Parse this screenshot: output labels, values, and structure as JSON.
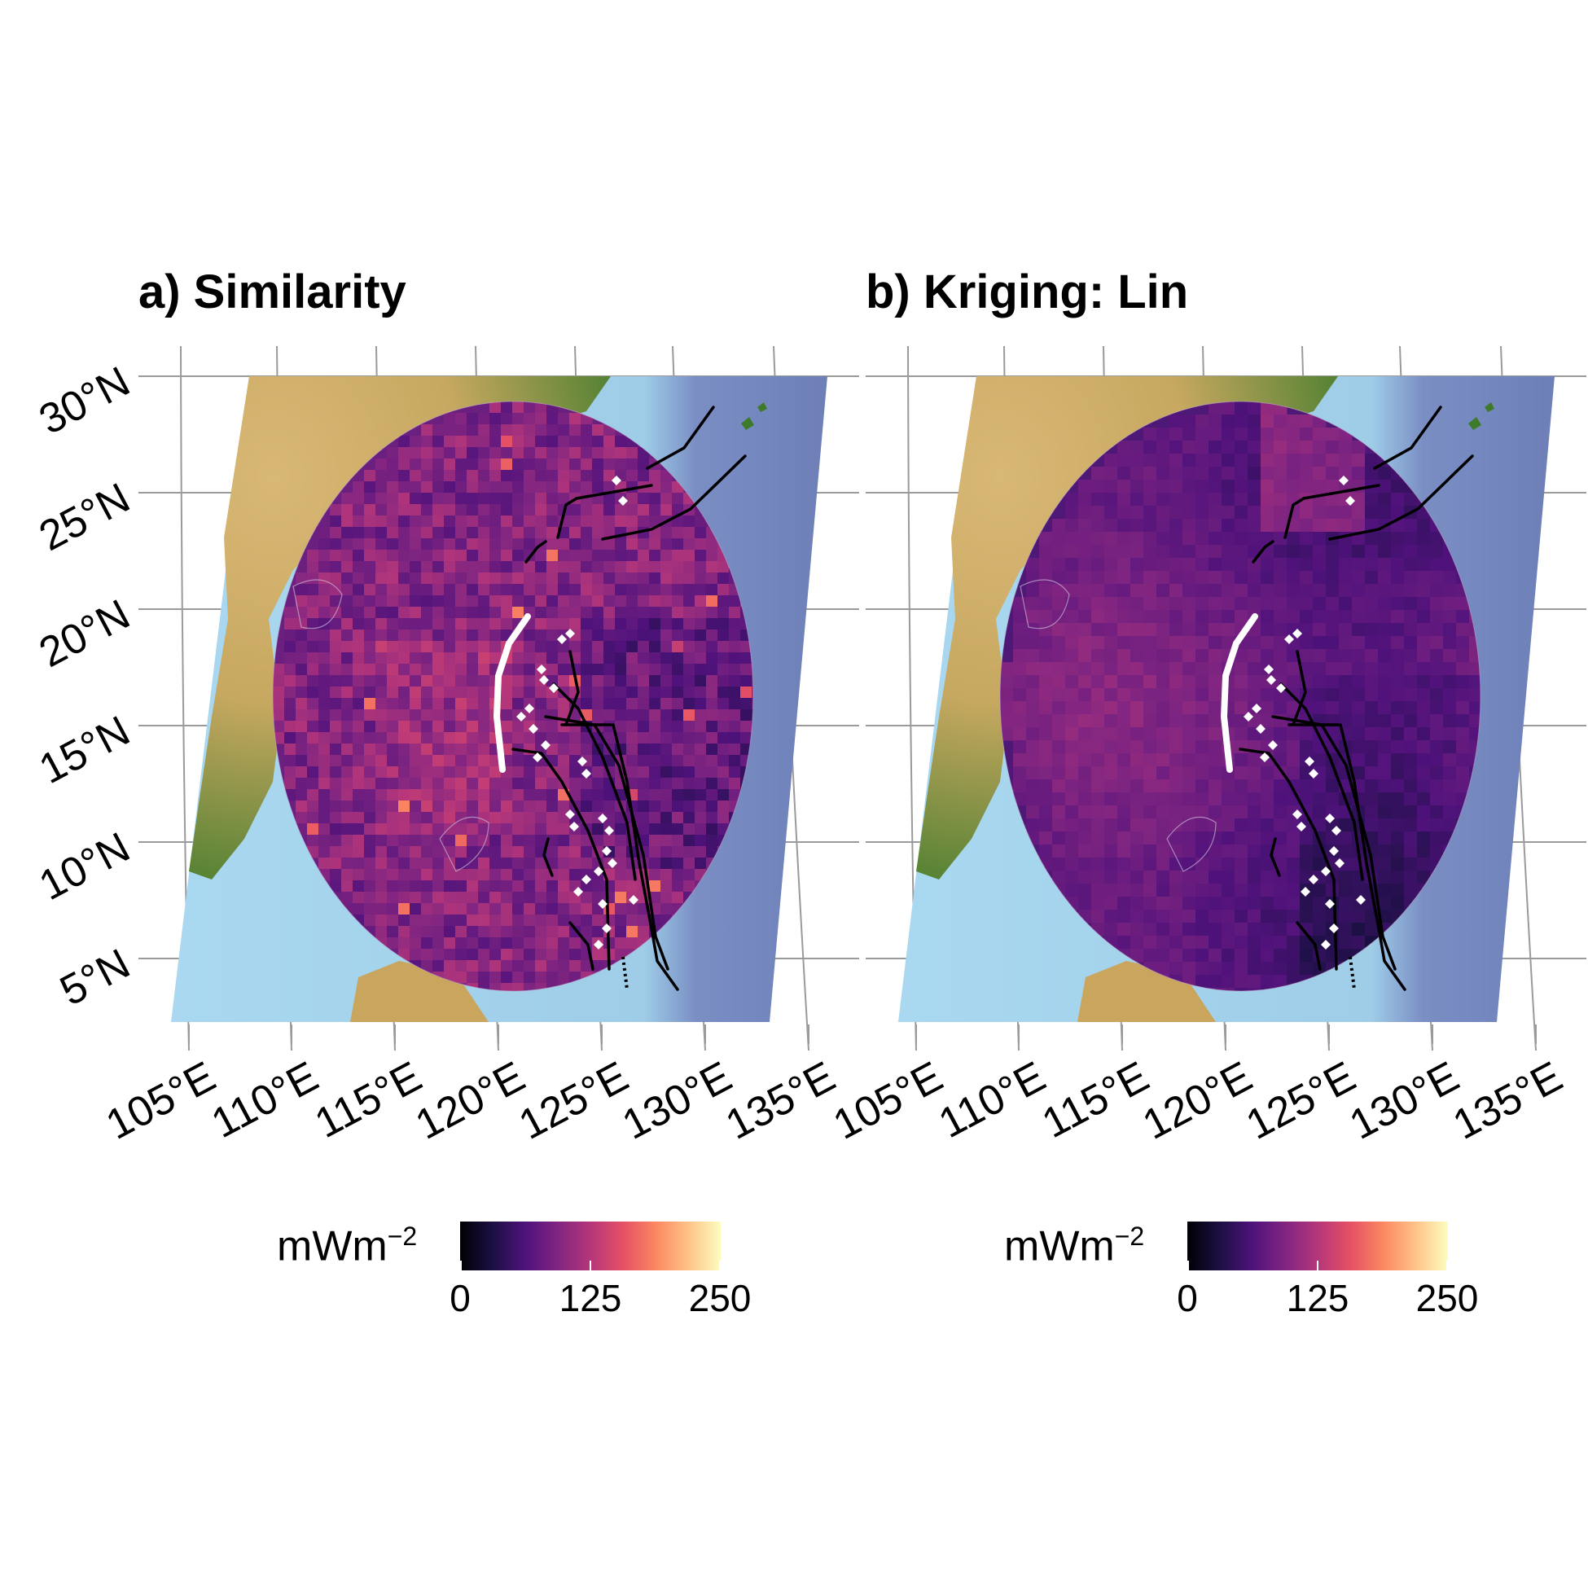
{
  "panels": [
    {
      "title": "a) Similarity",
      "color_key": "similarity"
    },
    {
      "title": "b) Kriging: Lin",
      "color_key": "kriging"
    }
  ],
  "latitude_ticks": [
    "30°N",
    "25°N",
    "20°N",
    "15°N",
    "10°N",
    "5°N"
  ],
  "longitude_ticks": [
    "105°E",
    "110°E",
    "115°E",
    "120°E",
    "125°E",
    "130°E",
    "135°E"
  ],
  "legend": {
    "title_base": "mWm",
    "title_exponent": "−2",
    "ticks": [
      "0",
      "125",
      "250"
    ],
    "colormap": "magma",
    "range": [
      0,
      250
    ]
  },
  "colors": {
    "ocean": "#a9d8f0",
    "deep_ocean": "#7a8ec4",
    "land_low": "#3d7a2a",
    "land_high": "#e8c890",
    "grid": "#9a9a9a",
    "similarity_base": "#6a1f7e",
    "kriging_base": "#4a1874"
  }
}
